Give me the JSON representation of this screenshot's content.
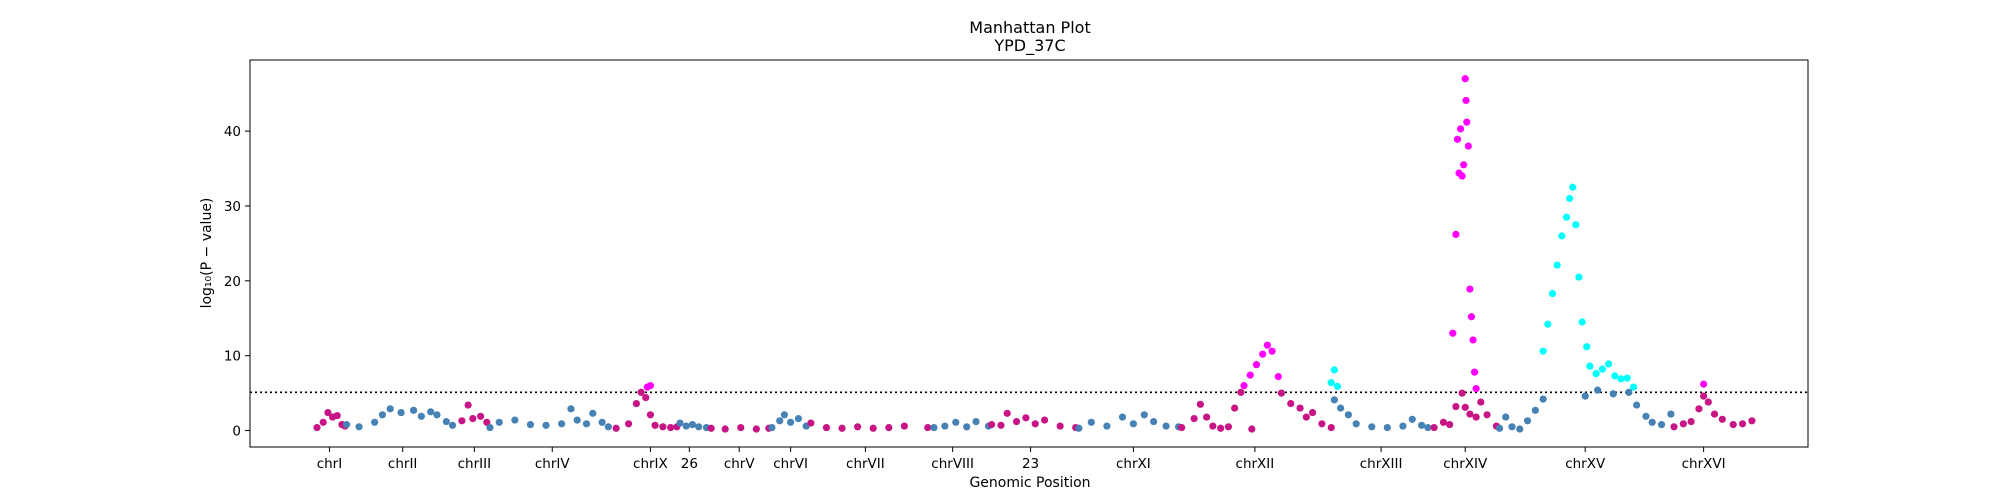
{
  "chart_data": {
    "type": "scatter",
    "title": "Manhattan Plot",
    "subtitle": "YPD_37C",
    "xlabel": "Genomic Position",
    "ylabel": "log₁₀(P − value)",
    "ylim": [
      -2.2,
      49.5
    ],
    "xlim": [
      0,
      100
    ],
    "y_ticks": [
      0,
      10,
      20,
      30,
      40
    ],
    "threshold": 5.1,
    "grid": false,
    "legend": "none",
    "colors": {
      "steelblue": "#4682b4",
      "mediumvioletred": "#c71585",
      "magenta": "#ff00ff",
      "cyan": "#00ffff",
      "threshold_line": "#000000"
    },
    "x_ticks": [
      {
        "label": "chrI",
        "x": 5.1
      },
      {
        "label": "chrII",
        "x": 9.8
      },
      {
        "label": "chrIII",
        "x": 14.4
      },
      {
        "label": "chrIV",
        "x": 19.4
      },
      {
        "label": "chrIX",
        "x": 25.7
      },
      {
        "label": "26",
        "x": 28.2
      },
      {
        "label": "chrV",
        "x": 31.4
      },
      {
        "label": "chrVI",
        "x": 34.7
      },
      {
        "label": "chrVII",
        "x": 39.5
      },
      {
        "label": "chrVIII",
        "x": 45.1
      },
      {
        "label": "23",
        "x": 50.1
      },
      {
        "label": "chrXI",
        "x": 56.7
      },
      {
        "label": "chrXII",
        "x": 64.5
      },
      {
        "label": "chrXIII",
        "x": 72.6
      },
      {
        "label": "chrXIV",
        "x": 78.0
      },
      {
        "label": "chrXV",
        "x": 85.7
      },
      {
        "label": "chrXVI",
        "x": 93.3
      }
    ],
    "series": [
      {
        "color": "mediumvioletred",
        "x": [
          4.3,
          4.7,
          5.0,
          5.3,
          5.6,
          5.9,
          6.1
        ],
        "y": [
          0.4,
          1.1,
          2.4,
          1.8,
          2.0,
          0.8,
          0.6
        ]
      },
      {
        "color": "steelblue",
        "x": [
          6.2,
          7.0,
          8.0,
          8.5,
          9.0,
          9.7,
          10.5,
          11.0,
          11.6,
          12.0,
          12.6,
          13.0
        ],
        "y": [
          0.8,
          0.5,
          1.1,
          2.1,
          2.9,
          2.4,
          2.7,
          1.9,
          2.5,
          2.1,
          1.2,
          0.7
        ]
      },
      {
        "color": "mediumvioletred",
        "x": [
          13.6,
          14.0,
          14.3,
          14.8,
          15.2
        ],
        "y": [
          1.3,
          3.4,
          1.6,
          1.9,
          1.1
        ]
      },
      {
        "color": "steelblue",
        "x": [
          15.4,
          16.0,
          17.0,
          18.0,
          19.0,
          20.0,
          20.6,
          21.0,
          21.6,
          22.0,
          22.6,
          23.0
        ],
        "y": [
          0.4,
          1.1,
          1.4,
          0.8,
          0.7,
          0.9,
          2.9,
          1.4,
          0.9,
          2.3,
          1.1,
          0.5
        ]
      },
      {
        "color": "mediumvioletred",
        "x": [
          23.5,
          24.3,
          24.8,
          25.1,
          25.4,
          25.7,
          26.0,
          26.5,
          27.0,
          27.4
        ],
        "y": [
          0.3,
          0.9,
          3.6,
          5.1,
          4.4,
          2.1,
          0.7,
          0.5,
          0.4,
          0.5
        ]
      },
      {
        "color": "magenta",
        "x": [
          25.5,
          25.7
        ],
        "y": [
          5.8,
          6.0
        ]
      },
      {
        "color": "steelblue",
        "x": [
          27.6,
          28.0,
          28.4,
          28.8,
          29.3
        ],
        "y": [
          1.0,
          0.6,
          0.8,
          0.5,
          0.4
        ]
      },
      {
        "color": "mediumvioletred",
        "x": [
          29.6,
          30.5,
          31.5,
          32.5,
          33.3
        ],
        "y": [
          0.3,
          0.2,
          0.4,
          0.2,
          0.3
        ]
      },
      {
        "color": "steelblue",
        "x": [
          33.5,
          34.0,
          34.3,
          34.7,
          35.2,
          35.7
        ],
        "y": [
          0.4,
          1.3,
          2.1,
          1.1,
          1.6,
          0.6
        ]
      },
      {
        "color": "mediumvioletred",
        "x": [
          36.0,
          37.0,
          38.0,
          39.0,
          40.0,
          41.0,
          42.0,
          43.5
        ],
        "y": [
          1.0,
          0.4,
          0.3,
          0.5,
          0.3,
          0.4,
          0.6,
          0.4
        ]
      },
      {
        "color": "steelblue",
        "x": [
          43.9,
          44.6,
          45.3,
          46.0,
          46.6,
          47.4
        ],
        "y": [
          0.4,
          0.6,
          1.1,
          0.5,
          1.2,
          0.6
        ]
      },
      {
        "color": "mediumvioletred",
        "x": [
          47.6,
          48.2,
          48.6,
          49.2,
          49.8,
          50.4,
          51.0,
          52.0,
          53.0
        ],
        "y": [
          0.8,
          0.7,
          2.3,
          1.2,
          1.7,
          0.9,
          1.4,
          0.6,
          0.4
        ]
      },
      {
        "color": "steelblue",
        "x": [
          53.2,
          54.0,
          55.0,
          56.0,
          56.7,
          57.4,
          58.0,
          58.8,
          59.6
        ],
        "y": [
          0.3,
          1.1,
          0.6,
          1.8,
          0.9,
          2.1,
          1.2,
          0.6,
          0.5
        ]
      },
      {
        "color": "mediumvioletred",
        "x": [
          59.8,
          60.6,
          61.0,
          61.4,
          61.8,
          62.3,
          62.8,
          63.2,
          63.6
        ],
        "y": [
          0.4,
          1.6,
          3.5,
          1.8,
          0.6,
          0.3,
          0.5,
          3.0,
          5.1
        ]
      },
      {
        "color": "magenta",
        "x": [
          63.8,
          64.2,
          64.6,
          65.0,
          65.3,
          65.6,
          66.0
        ],
        "y": [
          6.0,
          7.4,
          8.8,
          10.2,
          11.4,
          10.6,
          7.2
        ]
      },
      {
        "color": "mediumvioletred",
        "x": [
          64.3,
          66.2,
          66.8,
          67.4,
          67.8,
          68.2,
          68.8,
          69.4
        ],
        "y": [
          0.2,
          5.0,
          3.6,
          3.0,
          1.8,
          2.4,
          0.9,
          0.4
        ]
      },
      {
        "color": "cyan",
        "x": [
          69.4,
          69.6,
          69.8
        ],
        "y": [
          6.4,
          8.1,
          5.9
        ]
      },
      {
        "color": "steelblue",
        "x": [
          69.6,
          70.0,
          70.5,
          71.0,
          72.0,
          73.0,
          74.0,
          74.6,
          75.2,
          75.6
        ],
        "y": [
          4.1,
          3.0,
          2.1,
          0.9,
          0.5,
          0.4,
          0.6,
          1.5,
          0.7,
          0.4
        ]
      },
      {
        "color": "mediumvioletred",
        "x": [
          76.0,
          76.6,
          77.0,
          77.4,
          77.8,
          78.0,
          78.3,
          78.7,
          79.0,
          79.4,
          80.0
        ],
        "y": [
          0.4,
          1.1,
          0.8,
          3.2,
          5.0,
          3.1,
          2.2,
          1.8,
          3.8,
          2.1,
          0.6
        ]
      },
      {
        "color": "magenta",
        "x": [
          77.2,
          77.4,
          77.5,
          77.6,
          77.7,
          77.8,
          77.9,
          78.0,
          78.05,
          78.1,
          78.2,
          78.3,
          78.4,
          78.5,
          78.6,
          78.7
        ],
        "y": [
          13.0,
          26.2,
          38.9,
          34.4,
          40.3,
          34.0,
          35.5,
          47.0,
          44.1,
          41.2,
          38.0,
          18.9,
          15.2,
          12.1,
          7.8,
          5.6
        ]
      },
      {
        "color": "steelblue",
        "x": [
          80.2,
          80.6,
          81.0,
          81.5,
          82.0,
          82.5,
          83.0
        ],
        "y": [
          0.3,
          1.8,
          0.5,
          0.2,
          1.3,
          2.7,
          4.2
        ]
      },
      {
        "color": "cyan",
        "x": [
          83.0,
          83.3,
          83.6,
          83.9,
          84.2,
          84.5,
          84.7,
          84.9,
          85.1,
          85.3,
          85.5,
          85.8,
          86.0,
          86.4,
          86.8,
          87.2,
          87.6,
          88.0,
          88.4,
          88.8
        ],
        "y": [
          10.6,
          14.2,
          18.3,
          22.1,
          26.0,
          28.5,
          31.0,
          32.5,
          27.5,
          20.5,
          14.5,
          11.2,
          8.6,
          7.6,
          8.2,
          8.9,
          7.3,
          6.9,
          7.0,
          5.8
        ]
      },
      {
        "color": "steelblue",
        "x": [
          85.7,
          86.5,
          87.5,
          88.5,
          89.0,
          89.6,
          90.0,
          90.6,
          91.2
        ],
        "y": [
          4.6,
          5.4,
          4.9,
          5.1,
          3.4,
          1.9,
          1.1,
          0.8,
          2.2
        ]
      },
      {
        "color": "mediumvioletred",
        "x": [
          91.4,
          92.0,
          92.5,
          93.0,
          93.3,
          93.6,
          94.0,
          94.5,
          95.2,
          95.8,
          96.4
        ],
        "y": [
          0.5,
          0.9,
          1.2,
          2.9,
          4.6,
          3.8,
          2.2,
          1.5,
          0.8,
          0.9,
          1.3
        ]
      },
      {
        "color": "magenta",
        "x": [
          93.3
        ],
        "y": [
          6.2
        ]
      }
    ]
  }
}
